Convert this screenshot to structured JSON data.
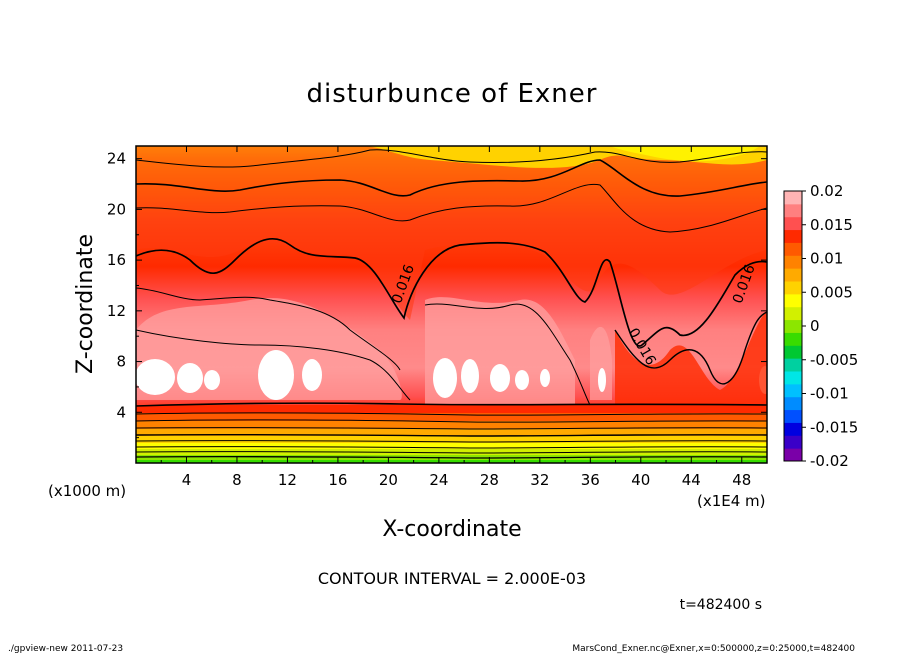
{
  "chart_data": {
    "type": "contour",
    "title": "disturbunce of Exner",
    "xlabel": "X-coordinate",
    "ylabel": "Z-coordinate",
    "x_unit_label": "(x1E4 m)",
    "y_unit_label": "(x1000 m)",
    "xlim": [
      0,
      50
    ],
    "ylim": [
      0,
      25
    ],
    "x_ticks": [
      4,
      8,
      12,
      16,
      20,
      24,
      28,
      32,
      36,
      40,
      44,
      48
    ],
    "y_ticks": [
      4,
      8,
      12,
      16,
      20,
      24
    ],
    "contour_interval_text": "CONTOUR INTERVAL = 2.000E-03",
    "contour_interval": 0.002,
    "contour_labels": [
      {
        "text": "0.016",
        "x": 21.5,
        "z": 14.0
      },
      {
        "text": "0.016",
        "x": 39.8,
        "z": 9.0
      },
      {
        "text": "0.016",
        "x": 48.5,
        "z": 14.0
      }
    ],
    "colorbar": {
      "min": -0.02,
      "max": 0.02,
      "tick_labels": [
        "0.02",
        "0.015",
        "0.01",
        "0.005",
        "0",
        "-0.005",
        "-0.01",
        "-0.015",
        "-0.02"
      ],
      "tick_values": [
        0.02,
        0.015,
        0.01,
        0.005,
        0,
        -0.005,
        -0.01,
        -0.015,
        -0.02
      ],
      "colors": [
        "#7a00a8",
        "#3a00c8",
        "#0000e0",
        "#0050ff",
        "#008cff",
        "#00c0ff",
        "#00e6e6",
        "#00d0a0",
        "#00c832",
        "#38dc00",
        "#8ce600",
        "#d2f000",
        "#ffff00",
        "#ffd200",
        "#ffaa00",
        "#ff8200",
        "#ff5a00",
        "#ff2a00",
        "#ff5050",
        "#ff8080",
        "#ffb4b4"
      ]
    },
    "time_label": "t=482400 s",
    "footer_left": "./gpview-new   2011-07-23",
    "footer_right": "MarsCond_Exner.nc@Exner,x=0:500000,z=0:25000,t=482400"
  }
}
